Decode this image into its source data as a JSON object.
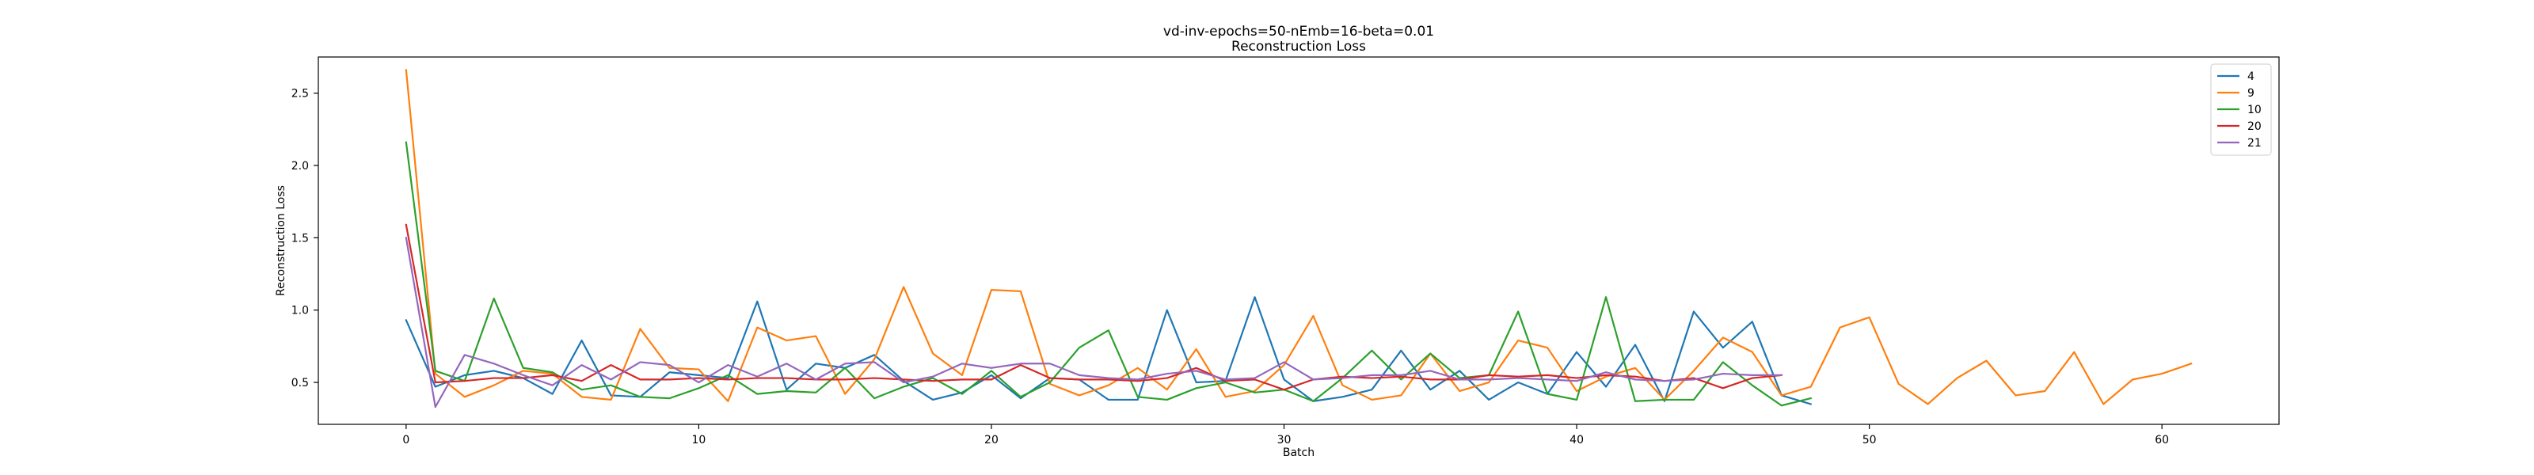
{
  "chart_data": {
    "type": "line",
    "title": "vd-inv-epochs=50-nEmb=16-beta=0.01",
    "subtitle": "Reconstruction Loss",
    "xlabel": "Batch",
    "ylabel": "Reconstruction Loss",
    "xlim": [
      -3,
      64
    ],
    "ylim": [
      0.21,
      2.75
    ],
    "xticks": [
      0,
      10,
      20,
      30,
      40,
      50,
      60
    ],
    "yticks": [
      0.5,
      1.0,
      1.5,
      2.0,
      2.5
    ],
    "xtick_labels": [
      "0",
      "10",
      "20",
      "30",
      "40",
      "50",
      "60"
    ],
    "ytick_labels": [
      "0.5",
      "1.0",
      "1.5",
      "2.0",
      "2.5"
    ],
    "grid": false,
    "legend_position": "top-right",
    "series": [
      {
        "name": "4",
        "color": "#1f77b4",
        "values": [
          0.93,
          0.47,
          0.55,
          0.58,
          0.53,
          0.42,
          0.79,
          0.41,
          0.4,
          0.57,
          0.55,
          0.53,
          1.06,
          0.45,
          0.63,
          0.6,
          0.69,
          0.51,
          0.38,
          0.43,
          0.55,
          0.39,
          0.53,
          0.52,
          0.38,
          0.38,
          1.0,
          0.5,
          0.51,
          1.09,
          0.52,
          0.37,
          0.4,
          0.45,
          0.72,
          0.45,
          0.58,
          0.38,
          0.5,
          0.42,
          0.71,
          0.47,
          0.76,
          0.37,
          0.99,
          0.74,
          0.92,
          0.41,
          0.35
        ]
      },
      {
        "name": "9",
        "color": "#ff7f0e",
        "values": [
          2.66,
          0.56,
          0.4,
          0.48,
          0.58,
          0.56,
          0.4,
          0.38,
          0.87,
          0.6,
          0.59,
          0.37,
          0.88,
          0.79,
          0.82,
          0.42,
          0.66,
          1.16,
          0.7,
          0.55,
          1.14,
          1.13,
          0.49,
          0.41,
          0.48,
          0.6,
          0.45,
          0.73,
          0.4,
          0.44,
          0.62,
          0.96,
          0.48,
          0.38,
          0.41,
          0.7,
          0.44,
          0.5,
          0.79,
          0.74,
          0.44,
          0.54,
          0.6,
          0.38,
          0.58,
          0.81,
          0.71,
          0.41,
          0.47,
          0.88,
          0.95,
          0.49,
          0.35,
          0.53,
          0.65,
          0.41,
          0.44,
          0.71,
          0.35,
          0.52,
          0.56,
          0.63
        ]
      },
      {
        "name": "10",
        "color": "#2ca02c",
        "values": [
          2.16,
          0.58,
          0.51,
          1.08,
          0.6,
          0.57,
          0.45,
          0.48,
          0.4,
          0.39,
          0.46,
          0.55,
          0.42,
          0.44,
          0.43,
          0.6,
          0.39,
          0.47,
          0.53,
          0.42,
          0.58,
          0.4,
          0.5,
          0.74,
          0.86,
          0.4,
          0.38,
          0.46,
          0.5,
          0.43,
          0.45,
          0.37,
          0.53,
          0.72,
          0.52,
          0.7,
          0.53,
          0.55,
          0.99,
          0.42,
          0.38,
          1.09,
          0.37,
          0.38,
          0.38,
          0.64,
          0.48,
          0.34,
          0.39
        ]
      },
      {
        "name": "20",
        "color": "#d62728",
        "values": [
          1.59,
          0.5,
          0.51,
          0.53,
          0.53,
          0.55,
          0.51,
          0.62,
          0.52,
          0.52,
          0.53,
          0.52,
          0.53,
          0.53,
          0.52,
          0.52,
          0.53,
          0.52,
          0.51,
          0.52,
          0.52,
          0.62,
          0.53,
          0.52,
          0.52,
          0.51,
          0.53,
          0.6,
          0.51,
          0.52,
          0.45,
          0.52,
          0.54,
          0.53,
          0.54,
          0.52,
          0.52,
          0.55,
          0.54,
          0.55,
          0.53,
          0.55,
          0.54,
          0.51,
          0.53,
          0.46,
          0.53,
          0.55
        ]
      },
      {
        "name": "21",
        "color": "#9467bd",
        "values": [
          1.5,
          0.33,
          0.69,
          0.63,
          0.55,
          0.48,
          0.62,
          0.52,
          0.64,
          0.62,
          0.5,
          0.62,
          0.54,
          0.63,
          0.52,
          0.63,
          0.64,
          0.5,
          0.54,
          0.63,
          0.6,
          0.63,
          0.63,
          0.55,
          0.53,
          0.52,
          0.56,
          0.58,
          0.52,
          0.53,
          0.64,
          0.52,
          0.53,
          0.55,
          0.55,
          0.58,
          0.52,
          0.52,
          0.53,
          0.52,
          0.51,
          0.57,
          0.52,
          0.51,
          0.52,
          0.56,
          0.55,
          0.55
        ]
      }
    ]
  }
}
